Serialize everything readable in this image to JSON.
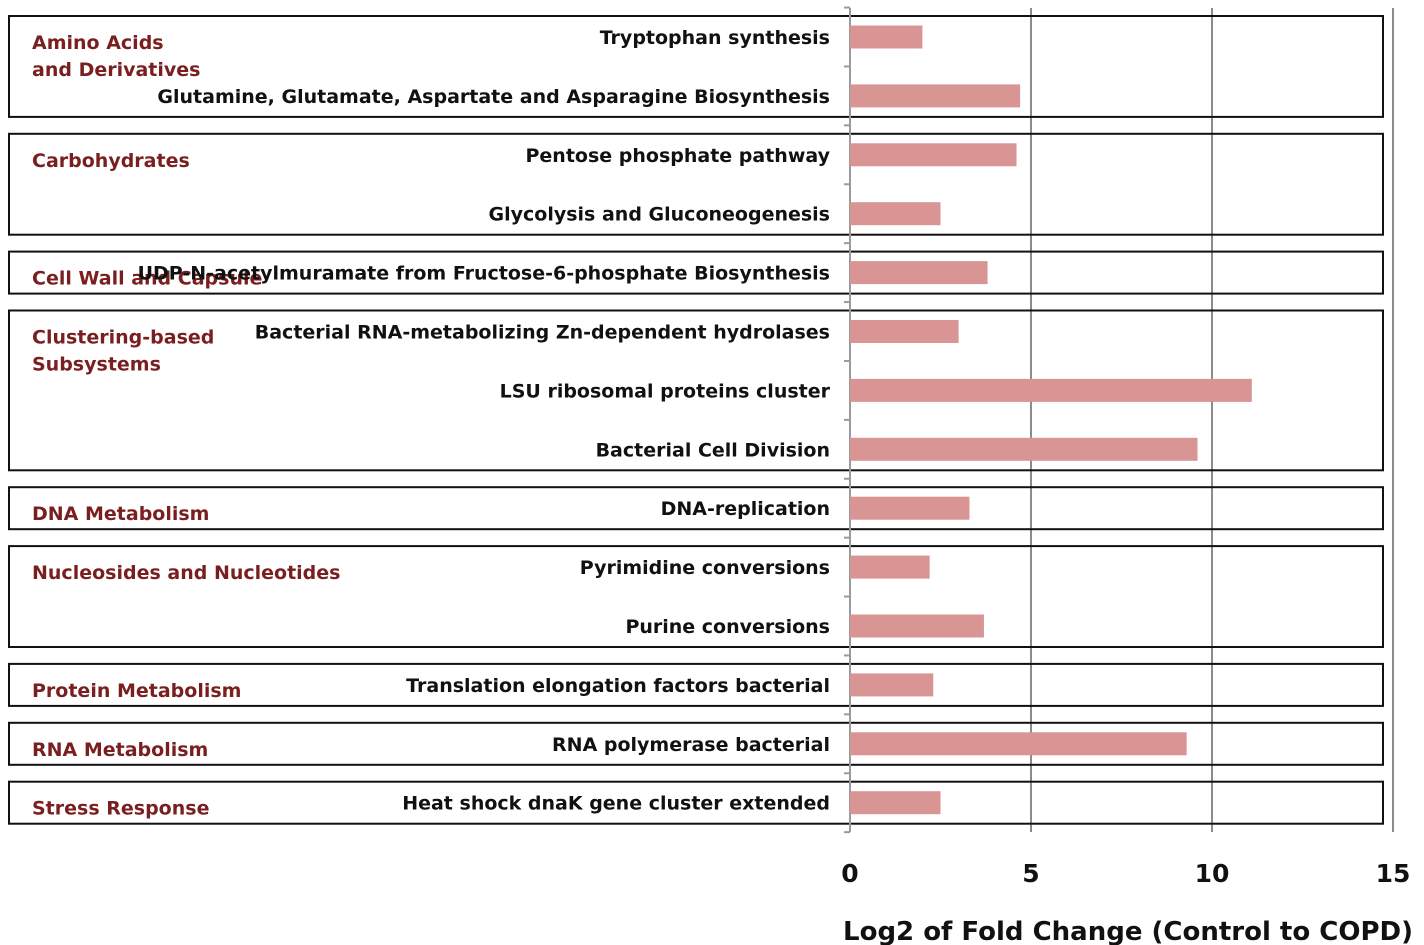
{
  "colors": {
    "bar": "#d99494",
    "group_label": "#7a1f1f",
    "row_label": "#111111",
    "gridline": "#8c8c8c",
    "box_border": "#111111"
  },
  "chart_data": {
    "type": "bar",
    "orientation": "horizontal",
    "xlabel": "Log2 of Fold Change (Control to COPD)",
    "xlim": [
      0,
      15
    ],
    "xticks": [
      0,
      5,
      10,
      15
    ],
    "grid": "vertical gridlines at major ticks",
    "groups": [
      {
        "name": "Amino Acids\nand Derivatives",
        "items": [
          {
            "label": "Tryptophan synthesis",
            "value": 2.0
          },
          {
            "label": "Glutamine, Glutamate, Aspartate and Asparagine Biosynthesis",
            "value": 4.7
          }
        ]
      },
      {
        "name": "Carbohydrates",
        "items": [
          {
            "label": "Pentose phosphate pathway",
            "value": 4.6
          },
          {
            "label": "Glycolysis and Gluconeogenesis",
            "value": 2.5
          }
        ]
      },
      {
        "name": "Cell Wall and Capsule",
        "items": [
          {
            "label": "UDP-N-acetylmuramate from Fructose-6-phosphate Biosynthesis",
            "value": 3.8
          }
        ]
      },
      {
        "name": "Clustering-based\nSubsystems",
        "items": [
          {
            "label": "Bacterial RNA-metabolizing Zn-dependent hydrolases",
            "value": 3.0
          },
          {
            "label": "LSU ribosomal proteins cluster",
            "value": 11.1
          },
          {
            "label": "Bacterial Cell Division",
            "value": 9.6
          }
        ]
      },
      {
        "name": "DNA Metabolism",
        "items": [
          {
            "label": "DNA-replication",
            "value": 3.3
          }
        ]
      },
      {
        "name": "Nucleosides and Nucleotides",
        "items": [
          {
            "label": "Pyrimidine conversions",
            "value": 2.2
          },
          {
            "label": "Purine conversions",
            "value": 3.7
          }
        ]
      },
      {
        "name": "Protein Metabolism",
        "items": [
          {
            "label": "Translation elongation factors bacterial",
            "value": 2.3
          }
        ]
      },
      {
        "name": "RNA Metabolism",
        "items": [
          {
            "label": "RNA polymerase bacterial",
            "value": 9.3
          }
        ]
      },
      {
        "name": "Stress Response",
        "items": [
          {
            "label": "Heat shock dnaK gene cluster extended",
            "value": 2.5
          }
        ]
      }
    ]
  }
}
